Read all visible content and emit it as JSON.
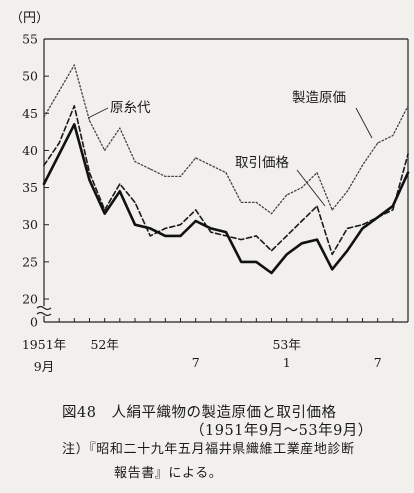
{
  "chart_data": {
    "type": "line",
    "title": "図48　人絹平織物の製造原価と取引価格",
    "subtitle": "（1951年9月〜53年9月）",
    "ylabel": "（円）",
    "ylim": [
      0,
      55
    ],
    "y_ticks": [
      "0",
      "20",
      "25",
      "30",
      "35",
      "40",
      "45",
      "50",
      "55"
    ],
    "y_axis_break": true,
    "x_tick_labels": [
      {
        "top": "1951年",
        "bottom": "9月",
        "month_index": 0
      },
      {
        "top": "52年",
        "bottom": "",
        "month_index": 4
      },
      {
        "top": "7",
        "bottom": "",
        "month_index": 10
      },
      {
        "top": "53年",
        "bottom": "",
        "month_index": 16
      },
      {
        "top": "1",
        "bottom": "",
        "month_index": 16
      },
      {
        "top": "7",
        "bottom": "",
        "month_index": 22
      }
    ],
    "x_months": [
      "1951-09",
      "1951-10",
      "1951-11",
      "1951-12",
      "1952-01",
      "1952-02",
      "1952-03",
      "1952-04",
      "1952-05",
      "1952-06",
      "1952-07",
      "1952-08",
      "1952-09",
      "1952-10",
      "1952-11",
      "1952-12",
      "1953-01",
      "1953-02",
      "1953-03",
      "1953-04",
      "1953-05",
      "1953-06",
      "1953-07",
      "1953-08",
      "1953-09"
    ],
    "grid": false,
    "series": [
      {
        "name": "製造原価",
        "style": "dotted",
        "color": "#444444",
        "values": [
          44.5,
          48.0,
          51.5,
          44.0,
          40.0,
          43.0,
          38.5,
          37.5,
          36.5,
          36.5,
          39.0,
          38.0,
          37.0,
          33.0,
          33.0,
          31.5,
          34.0,
          35.0,
          37.0,
          32.0,
          34.5,
          38.0,
          41.0,
          42.0,
          46.0
        ]
      },
      {
        "name": "原糸代",
        "style": "dashed",
        "color": "#1a1a1a",
        "values": [
          38.0,
          41.0,
          46.0,
          37.0,
          32.0,
          35.5,
          33.0,
          28.5,
          29.5,
          30.0,
          32.0,
          29.0,
          28.5,
          28.0,
          28.5,
          26.5,
          28.5,
          30.5,
          32.5,
          26.0,
          29.5,
          30.0,
          31.0,
          32.0,
          39.5
        ]
      },
      {
        "name": "取引価格",
        "style": "solid",
        "color": "#111111",
        "values": [
          35.5,
          39.5,
          43.5,
          36.0,
          31.5,
          34.5,
          30.0,
          29.5,
          28.5,
          28.5,
          30.5,
          29.5,
          29.0,
          25.0,
          25.0,
          23.5,
          26.0,
          27.5,
          28.0,
          24.0,
          26.5,
          29.5,
          31.0,
          32.5,
          37.0
        ]
      }
    ]
  },
  "note": {
    "line1": "注）『昭和二十九年五月福井県織維工業産地診断",
    "line2": "報告書』による。"
  }
}
